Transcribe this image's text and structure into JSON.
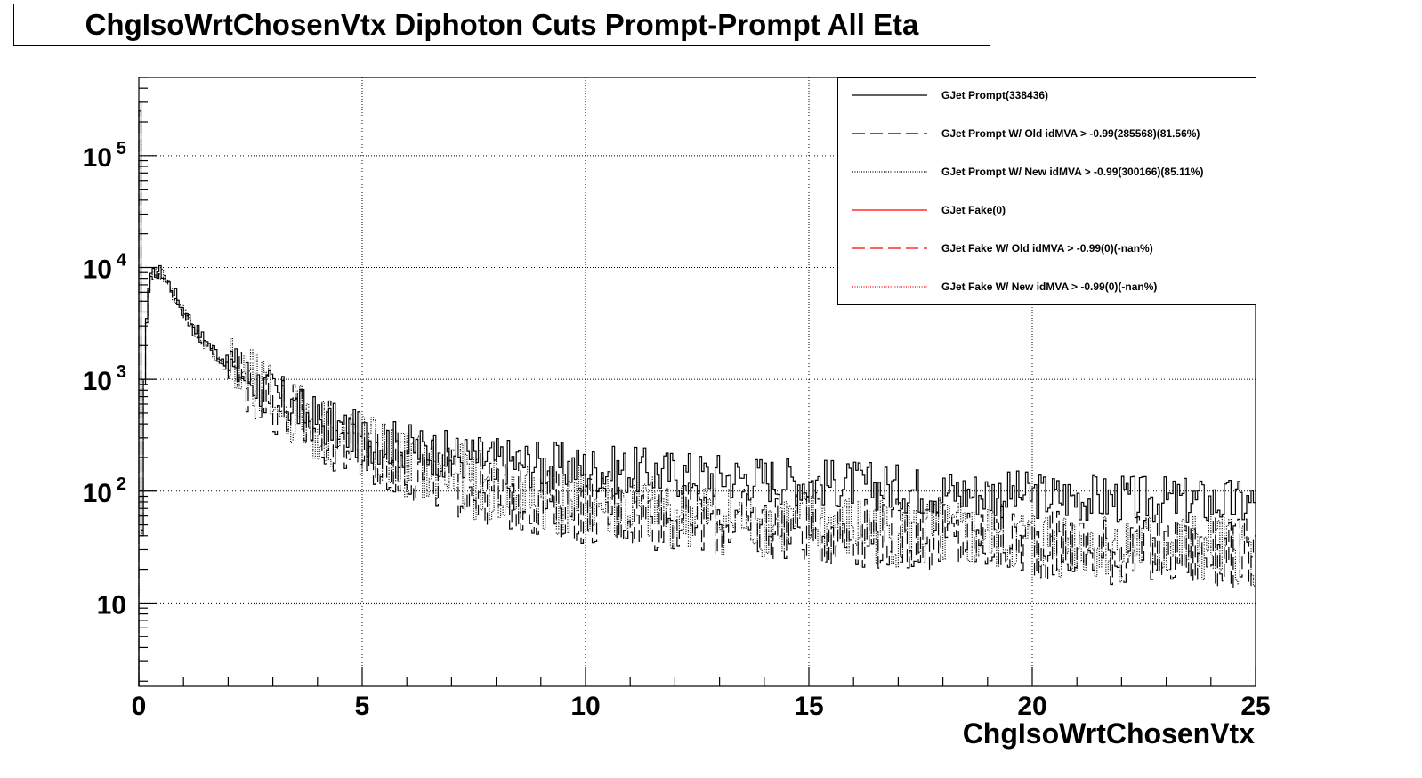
{
  "chart_data": {
    "type": "line",
    "title": "ChgIsoWrtChosenVtx Diphoton Cuts Prompt-Prompt All Eta",
    "xlabel": "ChgIsoWrtChosenVtx",
    "ylabel": "",
    "xlim": [
      0,
      25
    ],
    "ylim": [
      1.8,
      500000
    ],
    "y_scale": "log",
    "grid": true,
    "legend_position": "top-right",
    "x_ticks": [
      "0",
      "5",
      "10",
      "15",
      "20",
      "25"
    ],
    "y_ticks": [
      {
        "value": 10,
        "base": "10",
        "exp": ""
      },
      {
        "value": 100,
        "base": "10",
        "exp": "2"
      },
      {
        "value": 1000,
        "base": "10",
        "exp": "3"
      },
      {
        "value": 10000,
        "base": "10",
        "exp": "4"
      },
      {
        "value": 100000,
        "base": "10",
        "exp": "5"
      }
    ],
    "bin_width": 0.05,
    "series": [
      {
        "name": "GJet Prompt(338436)",
        "color": "#000000",
        "style": "solid",
        "values": [
          [
            0.0,
            300000
          ],
          [
            0.05,
            45
          ],
          [
            0.1,
            1000
          ],
          [
            0.15,
            3500
          ],
          [
            0.2,
            6500
          ],
          [
            0.3,
            8500
          ],
          [
            0.4,
            9500
          ],
          [
            0.5,
            9200
          ],
          [
            0.6,
            8000
          ],
          [
            0.8,
            6000
          ],
          [
            1.0,
            4200
          ],
          [
            1.2,
            3200
          ],
          [
            1.5,
            2200
          ],
          [
            2.0,
            1400
          ],
          [
            2.5,
            1000
          ],
          [
            3.0,
            750
          ],
          [
            3.5,
            560
          ],
          [
            4.0,
            430
          ],
          [
            4.5,
            360
          ],
          [
            5.0,
            310
          ],
          [
            6.0,
            250
          ],
          [
            7.0,
            210
          ],
          [
            8.0,
            190
          ],
          [
            9.0,
            175
          ],
          [
            10.0,
            160
          ],
          [
            12.0,
            145
          ],
          [
            14.0,
            130
          ],
          [
            16.0,
            115
          ],
          [
            18.0,
            100
          ],
          [
            20.0,
            92
          ],
          [
            22.0,
            85
          ],
          [
            24.0,
            80
          ],
          [
            25.0,
            78
          ]
        ]
      },
      {
        "name": "GJet Prompt W/ Old idMVA > -0.99(285568)(81.56%)",
        "color": "#000000",
        "style": "dashed",
        "values": [
          [
            0.0,
            250000
          ],
          [
            0.05,
            40
          ],
          [
            0.1,
            900
          ],
          [
            0.15,
            3200
          ],
          [
            0.2,
            6000
          ],
          [
            0.3,
            8000
          ],
          [
            0.4,
            9000
          ],
          [
            0.5,
            8700
          ],
          [
            0.6,
            7500
          ],
          [
            0.8,
            5500
          ],
          [
            1.0,
            3900
          ],
          [
            1.2,
            2900
          ],
          [
            1.5,
            2000
          ],
          [
            2.0,
            1250
          ],
          [
            2.5,
            880
          ],
          [
            3.0,
            640
          ],
          [
            3.5,
            470
          ],
          [
            4.0,
            350
          ],
          [
            4.5,
            280
          ],
          [
            5.0,
            230
          ],
          [
            6.0,
            170
          ],
          [
            7.0,
            125
          ],
          [
            8.0,
            95
          ],
          [
            9.0,
            80
          ],
          [
            10.0,
            70
          ],
          [
            12.0,
            58
          ],
          [
            14.0,
            50
          ],
          [
            16.0,
            44
          ],
          [
            18.0,
            38
          ],
          [
            20.0,
            34
          ],
          [
            22.0,
            30
          ],
          [
            24.0,
            28
          ],
          [
            25.0,
            27
          ]
        ]
      },
      {
        "name": "GJet Prompt W/ New idMVA > -0.99(300166)(85.11%)",
        "color": "#000000",
        "style": "dotted",
        "values": [
          [
            0.0,
            260000
          ],
          [
            0.05,
            42
          ],
          [
            0.1,
            950
          ],
          [
            0.15,
            3300
          ],
          [
            0.2,
            6200
          ],
          [
            0.3,
            8200
          ],
          [
            0.4,
            9200
          ],
          [
            0.5,
            8900
          ],
          [
            0.6,
            7700
          ],
          [
            0.8,
            5700
          ],
          [
            1.0,
            4000
          ],
          [
            1.2,
            3000
          ],
          [
            1.5,
            2050
          ],
          [
            2.0,
            1300
          ],
          [
            2.5,
            900
          ],
          [
            3.0,
            660
          ],
          [
            3.5,
            490
          ],
          [
            4.0,
            365
          ],
          [
            4.5,
            295
          ],
          [
            5.0,
            245
          ],
          [
            6.0,
            180
          ],
          [
            7.0,
            135
          ],
          [
            8.0,
            102
          ],
          [
            9.0,
            86
          ],
          [
            10.0,
            76
          ],
          [
            12.0,
            62
          ],
          [
            14.0,
            53
          ],
          [
            16.0,
            46
          ],
          [
            18.0,
            40
          ],
          [
            20.0,
            36
          ],
          [
            22.0,
            32
          ],
          [
            24.0,
            30
          ],
          [
            25.0,
            29
          ]
        ]
      },
      {
        "name": "GJet Fake(0)",
        "color": "#ff0000",
        "style": "solid",
        "values": []
      },
      {
        "name": "GJet Fake W/ Old idMVA > -0.99(0)(-nan%)",
        "color": "#ff0000",
        "style": "dashed",
        "values": []
      },
      {
        "name": "GJet Fake W/ New idMVA > -0.99(0)(-nan%)",
        "color": "#ff0000",
        "style": "dotted",
        "values": []
      }
    ]
  }
}
